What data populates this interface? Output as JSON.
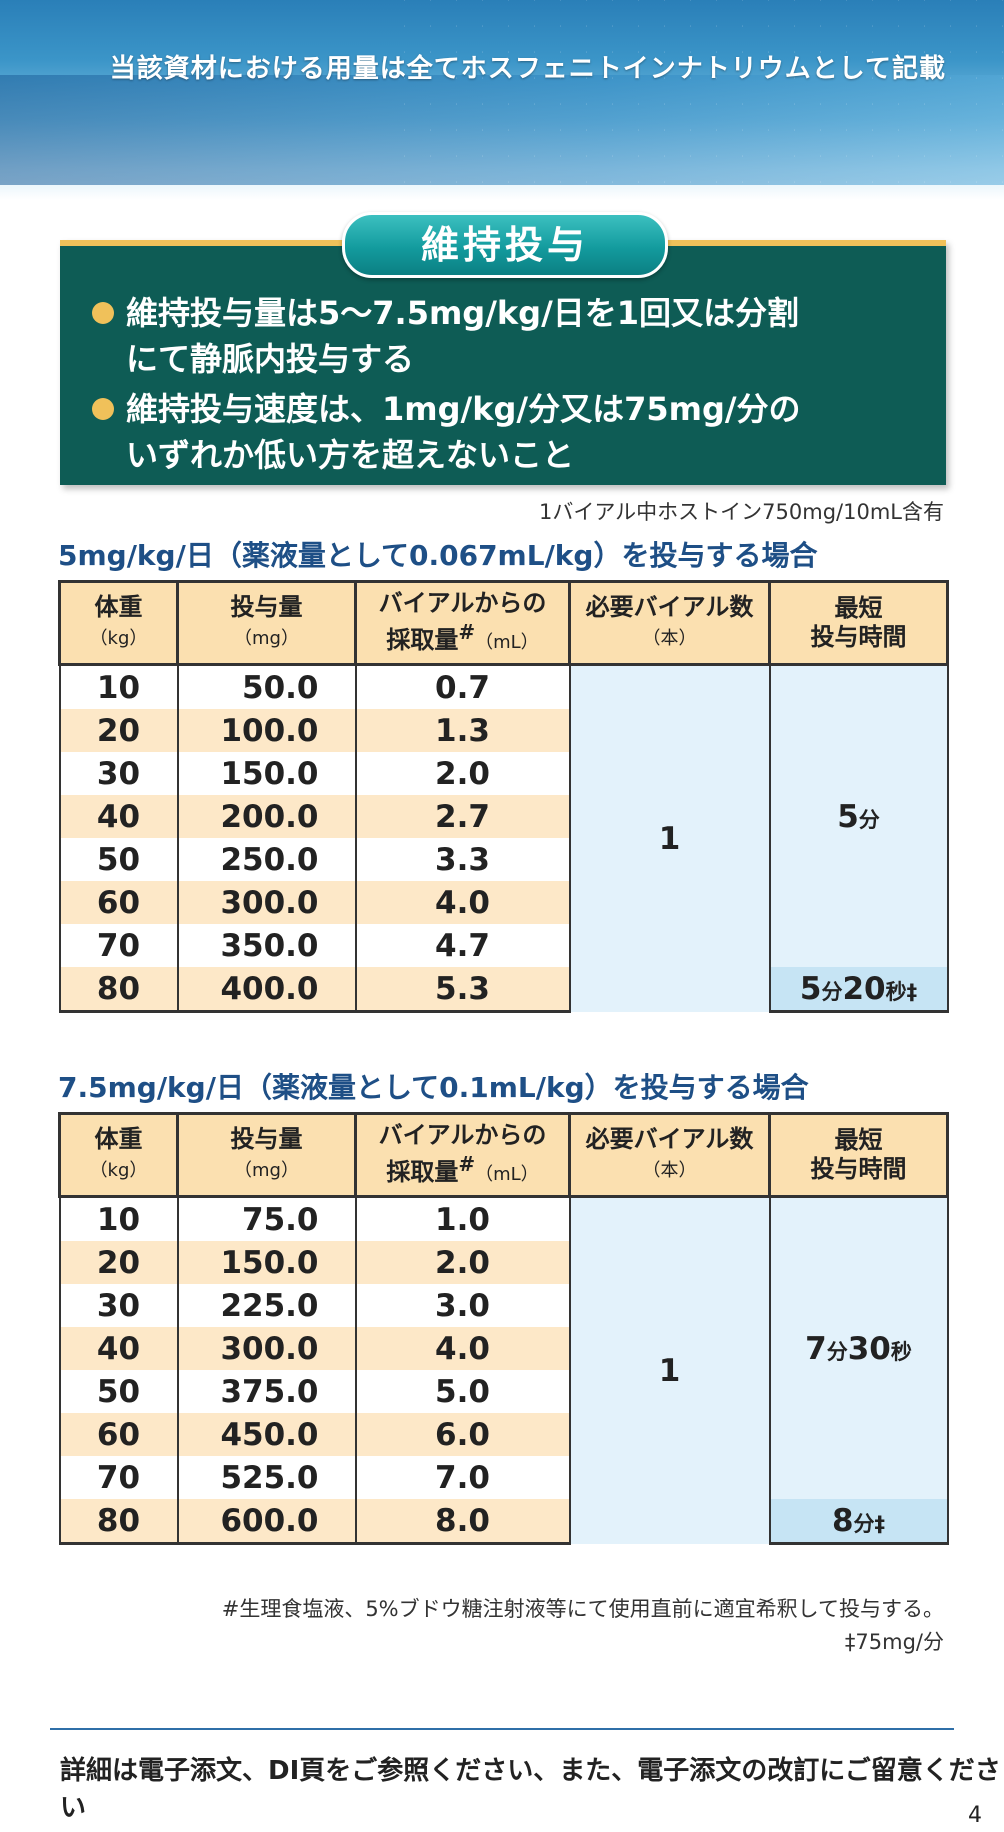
{
  "header": {
    "note": "当該資材における用量は全てホスフェニトインナトリウムとして記載"
  },
  "section": {
    "title": "維持投与",
    "bullets": [
      {
        "line1": "維持投与量は5～7.5mg/kg/日を1回又は分割",
        "line2": "にて静脈内投与する"
      },
      {
        "line1": "維持投与速度は、1mg/kg/分又は75mg/分の",
        "line2": "いずれか低い方を超えないこと"
      }
    ]
  },
  "vial_note": "1バイアル中ホストイン750mg/10mL含有",
  "table_headers": {
    "weight": "体重",
    "weight_unit": "（kg）",
    "dose": "投与量",
    "dose_unit": "（mg）",
    "volume_line1": "バイアルからの",
    "volume_line2": "採取量",
    "volume_mark": "#",
    "volume_unit": "（mL）",
    "vials": "必要バイアル数",
    "vials_unit": "（本）",
    "time_line1": "最短",
    "time_line2": "投与時間"
  },
  "table1": {
    "title": "5mg/kg/日（薬液量として0.067mL/kg）を投与する場合",
    "rows": [
      {
        "weight": "10",
        "dose": "50.0",
        "volume": "0.7"
      },
      {
        "weight": "20",
        "dose": "100.0",
        "volume": "1.3"
      },
      {
        "weight": "30",
        "dose": "150.0",
        "volume": "2.0"
      },
      {
        "weight": "40",
        "dose": "200.0",
        "volume": "2.7"
      },
      {
        "weight": "50",
        "dose": "250.0",
        "volume": "3.3"
      },
      {
        "weight": "60",
        "dose": "300.0",
        "volume": "4.0"
      },
      {
        "weight": "70",
        "dose": "350.0",
        "volume": "4.7"
      },
      {
        "weight": "80",
        "dose": "400.0",
        "volume": "5.3"
      }
    ],
    "vials": "1",
    "time_main_num": "5",
    "time_main_unit": "分",
    "time_last": {
      "n1": "5",
      "u1": "分",
      "n2": "20",
      "u2": "秒",
      "mark": "‡"
    }
  },
  "table2": {
    "title": "7.5mg/kg/日（薬液量として0.1mL/kg）を投与する場合",
    "rows": [
      {
        "weight": "10",
        "dose": "75.0",
        "volume": "1.0"
      },
      {
        "weight": "20",
        "dose": "150.0",
        "volume": "2.0"
      },
      {
        "weight": "30",
        "dose": "225.0",
        "volume": "3.0"
      },
      {
        "weight": "40",
        "dose": "300.0",
        "volume": "4.0"
      },
      {
        "weight": "50",
        "dose": "375.0",
        "volume": "5.0"
      },
      {
        "weight": "60",
        "dose": "450.0",
        "volume": "6.0"
      },
      {
        "weight": "70",
        "dose": "525.0",
        "volume": "7.0"
      },
      {
        "weight": "80",
        "dose": "600.0",
        "volume": "8.0"
      }
    ],
    "vials": "1",
    "time_main": {
      "n1": "7",
      "u1": "分",
      "n2": "30",
      "u2": "秒"
    },
    "time_last": {
      "n1": "8",
      "u1": "分",
      "mark": "‡"
    }
  },
  "footnotes": {
    "note1": "#生理食塩液、5%ブドウ糖注射液等にて使用直前に適宜希釈して投与する。",
    "note2": "‡75mg/分"
  },
  "footer": "詳細は電子添文、DI頁をご参照ください、また、電子添文の改訂にご留意ください",
  "page_number": "4",
  "colors": {
    "teal_box": "#0e5c55",
    "header_blue": "#2a7fb8",
    "table_header": "#fbe0b0",
    "alt_row": "#fde8c8",
    "light_blue": "#e3f2fb",
    "title_blue": "#1e4f86"
  }
}
